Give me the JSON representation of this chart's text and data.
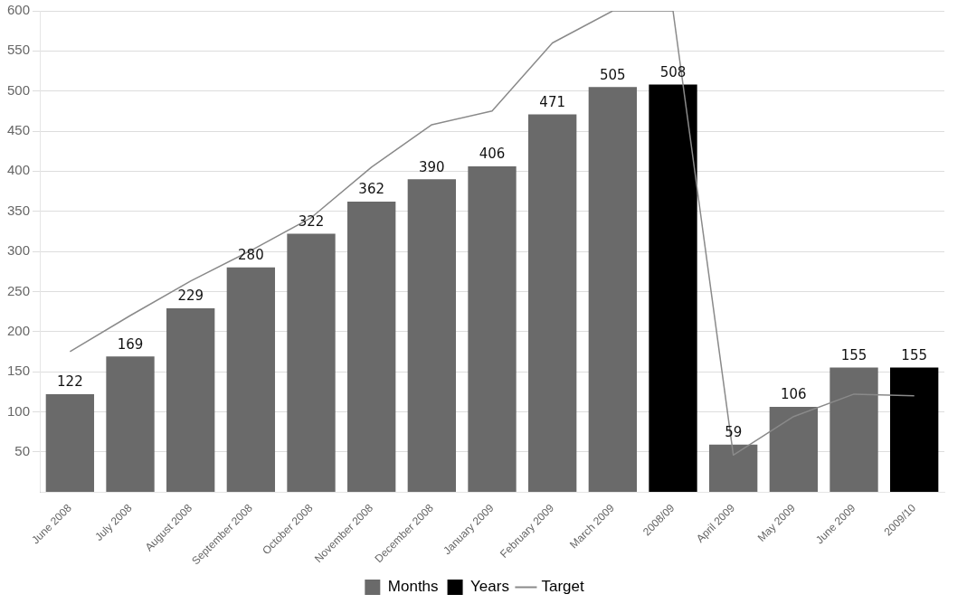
{
  "chart_data": {
    "type": "bar",
    "categories": [
      "June 2008",
      "July 2008",
      "August 2008",
      "September 2008",
      "October 2008",
      "November 2008",
      "December 2008",
      "January 2009",
      "February 2009",
      "March 2009",
      "2008/09",
      "April 2009",
      "May 2009",
      "June 2009",
      "2009/10"
    ],
    "series": [
      {
        "name": "Months",
        "color": "#6a6a6a",
        "values": [
          122,
          169,
          229,
          280,
          322,
          362,
          390,
          406,
          471,
          505,
          null,
          59,
          106,
          155,
          null
        ],
        "value_labels": [
          "122",
          "169",
          "229",
          "280",
          "322",
          "362",
          "390",
          "406",
          "471",
          "505",
          null,
          "59",
          "106",
          "155",
          null
        ]
      },
      {
        "name": "Years",
        "color": "#000000",
        "values": [
          null,
          null,
          null,
          null,
          null,
          null,
          null,
          null,
          null,
          null,
          508,
          null,
          null,
          null,
          155
        ],
        "value_labels": [
          null,
          null,
          null,
          null,
          null,
          null,
          null,
          null,
          null,
          null,
          "508",
          null,
          null,
          null,
          "155"
        ]
      },
      {
        "name": "Target",
        "type": "line",
        "color": "#8a8a8a",
        "values": [
          175,
          220,
          263,
          301,
          342,
          405,
          458,
          475,
          560,
          600,
          600,
          46,
          94,
          122,
          120
        ]
      }
    ],
    "ylim": [
      0,
      600
    ],
    "yticks": [
      50,
      100,
      150,
      200,
      250,
      300,
      350,
      400,
      450,
      500,
      550,
      600
    ],
    "grid": "y",
    "legend": "bottom",
    "marker": "none"
  }
}
